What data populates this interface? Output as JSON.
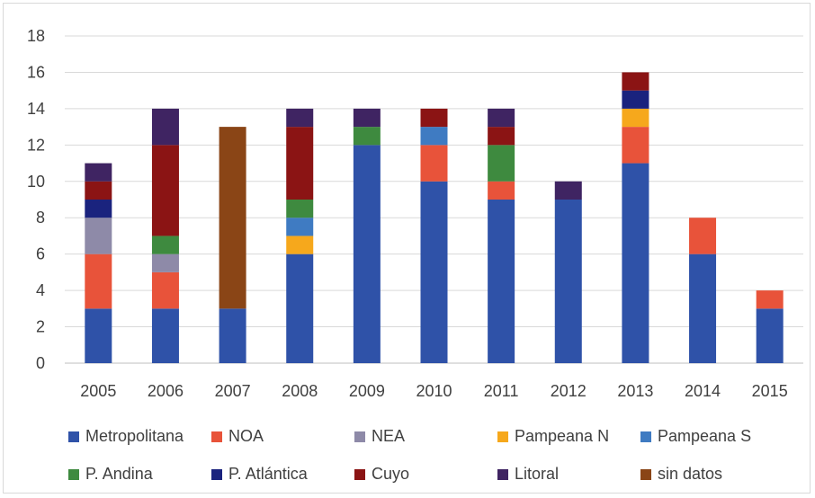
{
  "chart_data": {
    "type": "bar",
    "stacked": true,
    "title": "",
    "xlabel": "",
    "ylabel": "",
    "ylim": [
      0,
      18
    ],
    "yticks": [
      0,
      2,
      4,
      6,
      8,
      10,
      12,
      14,
      16,
      18
    ],
    "grid": true,
    "legend_position": "bottom",
    "categories": [
      "2005",
      "2006",
      "2007",
      "2008",
      "2009",
      "2010",
      "2011",
      "2012",
      "2013",
      "2014",
      "2015"
    ],
    "series": [
      {
        "name": "Metropolitana",
        "color": "#2f52a8",
        "values": [
          3,
          3,
          3,
          6,
          12,
          10,
          9,
          9,
          11,
          6,
          3
        ]
      },
      {
        "name": "NOA",
        "color": "#e8533a",
        "values": [
          3,
          2,
          0,
          0,
          0,
          2,
          1,
          0,
          2,
          2,
          1
        ]
      },
      {
        "name": "NEA",
        "color": "#8e8aa8",
        "values": [
          2,
          1,
          0,
          0,
          0,
          0,
          0,
          0,
          0,
          0,
          0
        ]
      },
      {
        "name": "Pampeana N",
        "color": "#f6a81c",
        "values": [
          0,
          0,
          0,
          1,
          0,
          0,
          0,
          0,
          1,
          0,
          0
        ]
      },
      {
        "name": "Pampeana S",
        "color": "#3f7bc2",
        "values": [
          0,
          0,
          0,
          1,
          0,
          1,
          0,
          0,
          0,
          0,
          0
        ]
      },
      {
        "name": "P. Andina",
        "color": "#3e8a3f",
        "values": [
          0,
          1,
          0,
          1,
          1,
          0,
          2,
          0,
          0,
          0,
          0
        ]
      },
      {
        "name": "P. Atlántica",
        "color": "#1a237e",
        "values": [
          1,
          0,
          0,
          0,
          0,
          0,
          0,
          0,
          1,
          0,
          0
        ]
      },
      {
        "name": "Cuyo",
        "color": "#8b1414",
        "values": [
          1,
          5,
          0,
          4,
          0,
          1,
          1,
          0,
          1,
          0,
          0
        ]
      },
      {
        "name": "Litoral",
        "color": "#3f2462",
        "values": [
          1,
          2,
          0,
          1,
          1,
          0,
          1,
          1,
          0,
          0,
          0
        ]
      },
      {
        "name": "sin datos",
        "color": "#8a4516",
        "values": [
          0,
          0,
          10,
          0,
          0,
          0,
          0,
          0,
          0,
          0,
          0
        ]
      }
    ]
  }
}
